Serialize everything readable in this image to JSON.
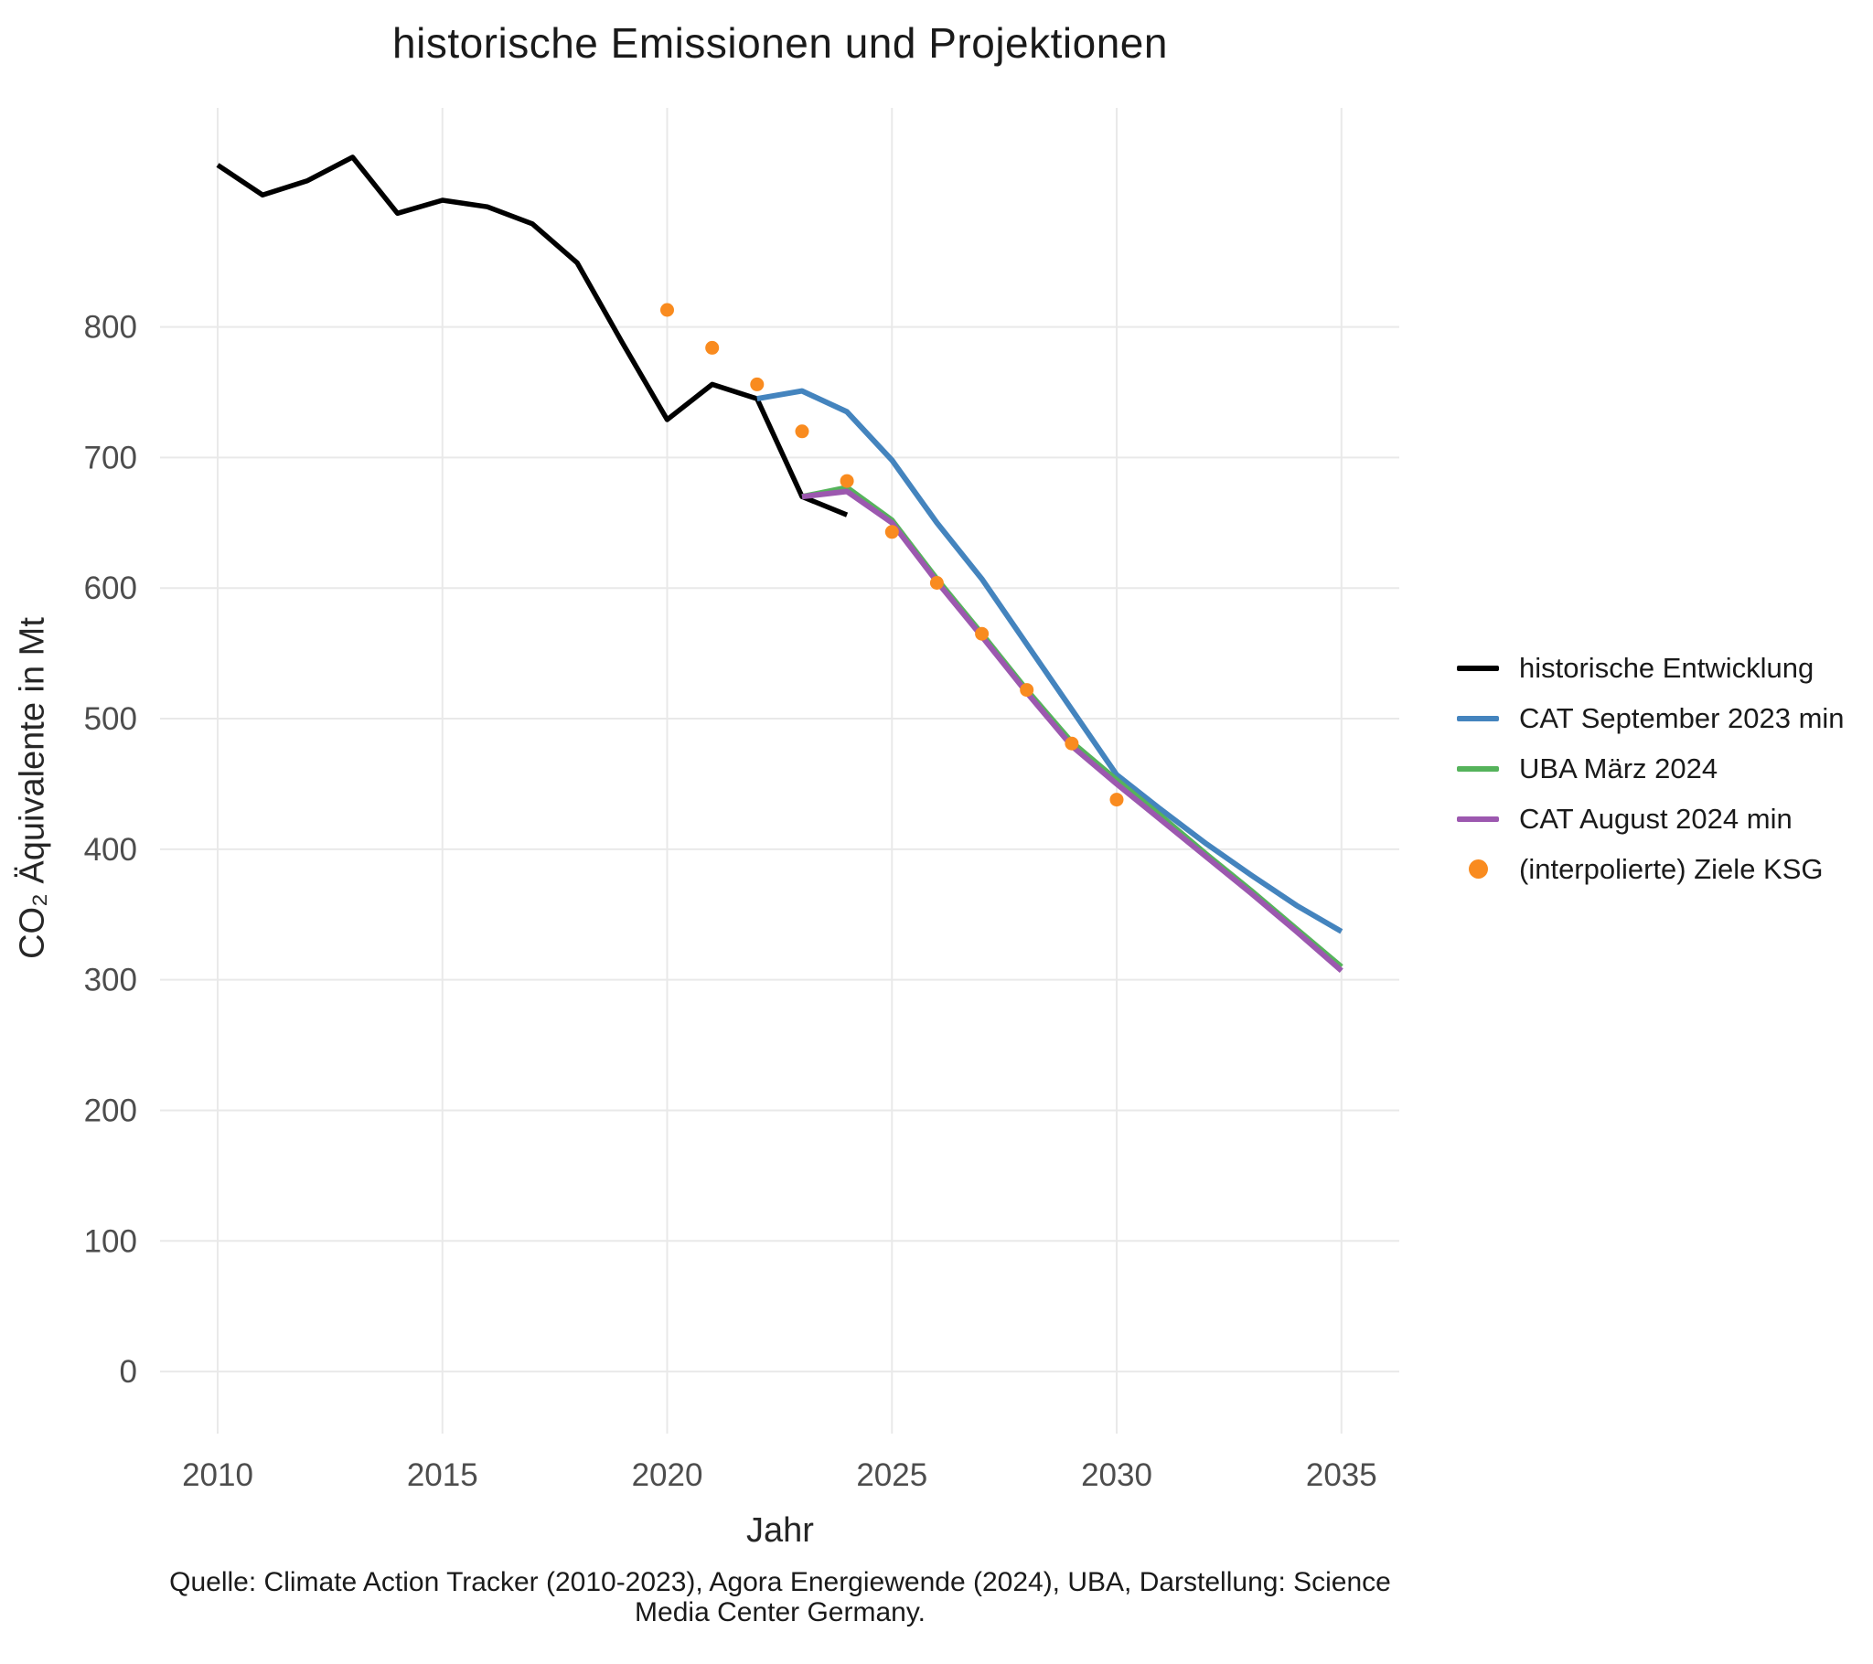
{
  "title": "historische Emissionen und Projektionen",
  "axes": {
    "x_label": "Jahr",
    "y_label": "CO₂ Äquivalente in Mt",
    "x_ticks": [
      2010,
      2015,
      2020,
      2025,
      2030,
      2035
    ],
    "y_ticks": [
      0,
      100,
      200,
      300,
      400,
      500,
      600,
      700,
      800
    ]
  },
  "caption": {
    "line1": "Quelle: Climate Action Tracker (2010-2023), Agora Energiewende (2024), UBA, Darstellung: Science",
    "line2": "Media Center Germany."
  },
  "colors": {
    "historical": "#000000",
    "cat_sep_2023": "#4484be",
    "uba_mar_2024": "#55b35b",
    "cat_aug_2024": "#9c58af",
    "ksg_targets": "#f98b1f",
    "gridline": "#e9e9e9",
    "tick_text": "#4d4d4d"
  },
  "legend": {
    "items": [
      {
        "label": "historische Entwicklung",
        "type": "line",
        "color": "#000000"
      },
      {
        "label": "CAT September 2023 min",
        "type": "line",
        "color": "#4484be"
      },
      {
        "label": "UBA März 2024",
        "type": "line",
        "color": "#55b35b"
      },
      {
        "label": "CAT August 2024 min",
        "type": "line",
        "color": "#9c58af"
      },
      {
        "label": "(interpolierte) Ziele KSG",
        "type": "dot",
        "color": "#f98b1f"
      }
    ]
  },
  "chart_data": {
    "type": "line",
    "title": "historische Emissionen und Projektionen",
    "xlabel": "Jahr",
    "ylabel": "CO₂ Äquivalente in Mt",
    "xlim": [
      2010,
      2035
    ],
    "ylim": [
      0,
      950
    ],
    "grid": true,
    "legend_position": "right",
    "series": [
      {
        "name": "historische Entwicklung",
        "color_key": "historical",
        "stroke_width": 5.5,
        "x": [
          2010,
          2011,
          2012,
          2013,
          2014,
          2015,
          2016,
          2017,
          2018,
          2019,
          2020,
          2021,
          2022,
          2023,
          2024
        ],
        "y": [
          924,
          901,
          912,
          930,
          887,
          897,
          892,
          879,
          849,
          788,
          729,
          756,
          745,
          670,
          656
        ]
      },
      {
        "name": "CAT September 2023 min",
        "color_key": "cat_sep_2023",
        "stroke_width": 6,
        "x": [
          2022,
          2023,
          2024,
          2025,
          2026,
          2027,
          2028,
          2029,
          2030,
          2031,
          2032,
          2033,
          2034,
          2035
        ],
        "y": [
          745,
          751,
          735,
          698,
          650,
          607,
          557,
          507,
          457,
          430,
          404,
          380,
          357,
          337
        ]
      },
      {
        "name": "UBA März 2024",
        "color_key": "uba_mar_2024",
        "stroke_width": 6,
        "x": [
          2023,
          2024,
          2025,
          2026,
          2027,
          2028,
          2029,
          2030,
          2031,
          2032,
          2033,
          2034,
          2035
        ],
        "y": [
          670,
          677,
          652,
          607,
          565,
          522,
          482,
          453,
          425,
          396,
          368,
          339,
          310
        ]
      },
      {
        "name": "CAT August 2024 min",
        "color_key": "cat_aug_2024",
        "stroke_width": 6,
        "x": [
          2023,
          2024,
          2025,
          2026,
          2027,
          2028,
          2029,
          2030,
          2031,
          2032,
          2033,
          2034,
          2035
        ],
        "y": [
          670,
          674,
          650,
          605,
          563,
          520,
          479,
          450,
          422,
          394,
          366,
          337,
          307
        ]
      }
    ],
    "points": {
      "name": "(interpolierte) Ziele KSG",
      "color_key": "ksg_targets",
      "radius": 7.5,
      "x": [
        2020,
        2021,
        2022,
        2023,
        2024,
        2025,
        2026,
        2027,
        2028,
        2029,
        2030
      ],
      "y": [
        813,
        784,
        756,
        720,
        682,
        643,
        604,
        565,
        522,
        481,
        438
      ]
    }
  }
}
